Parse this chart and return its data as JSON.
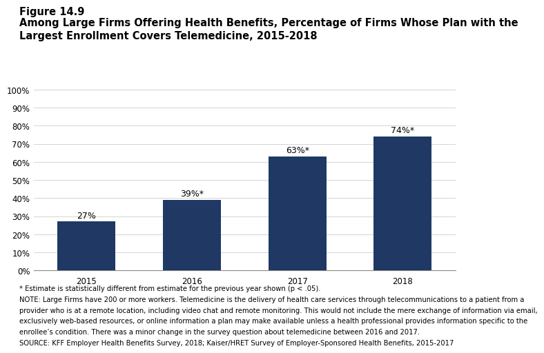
{
  "figure_label": "Figure 14.9",
  "title": "Among Large Firms Offering Health Benefits, Percentage of Firms Whose Plan with the\nLargest Enrollment Covers Telemedicine, 2015-2018",
  "categories": [
    "2015",
    "2016",
    "2017",
    "2018"
  ],
  "values": [
    27,
    39,
    63,
    74
  ],
  "bar_labels": [
    "27%",
    "39%*",
    "63%*",
    "74%*"
  ],
  "bar_color": "#1f3864",
  "ylim": [
    0,
    100
  ],
  "yticks": [
    0,
    10,
    20,
    30,
    40,
    50,
    60,
    70,
    80,
    90,
    100
  ],
  "ytick_labels": [
    "0%",
    "10%",
    "20%",
    "30%",
    "40%",
    "50%",
    "60%",
    "70%",
    "80%",
    "90%",
    "100%"
  ],
  "background_color": "#ffffff",
  "footnote_star": "* Estimate is statistically different from estimate for the previous year shown (p < .05).",
  "footnote_note1": "NOTE: Large Firms have 200 or more workers. Telemedicine is the delivery of health care services through telecommunications to a patient from a",
  "footnote_note2": "provider who is at a remote location, including video chat and remote monitoring. This would not include the mere exchange of information via email,",
  "footnote_note3": "exclusively web-based resources, or online information a plan may make available unless a health professional provides information specific to the",
  "footnote_note4": "enrollee’s condition. There was a minor change in the survey question about telemedicine between 2016 and 2017.",
  "footnote_source": "SOURCE: KFF Employer Health Benefits Survey, 2018; Kaiser/HRET Survey of Employer-Sponsored Health Benefits, 2015-2017",
  "title_fontsize": 10.5,
  "figure_label_fontsize": 10.5,
  "bar_label_fontsize": 9,
  "footnote_fontsize": 7.2,
  "axis_fontsize": 8.5
}
